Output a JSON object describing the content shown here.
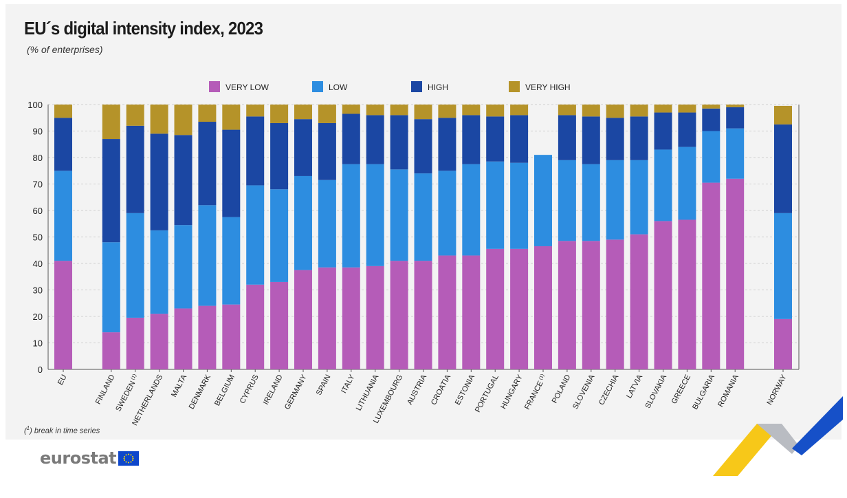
{
  "header": {
    "title": "EU´s digital intensity index, 2023",
    "subtitle": "(% of enterprises)"
  },
  "footer": {
    "footnote_marker": "1",
    "footnote_text": "break in time series",
    "logo_text": "eurostat"
  },
  "chart_data": {
    "type": "bar",
    "stacked": true,
    "ylim": [
      0,
      100
    ],
    "yticks": [
      0,
      10,
      20,
      30,
      40,
      50,
      60,
      70,
      80,
      90,
      100
    ],
    "grid": true,
    "legend_position": "top",
    "categories": [
      "EU",
      "FINLAND",
      "SWEDEN",
      "NETHERLANDS",
      "MALTA",
      "DENMARK",
      "BELGIUM",
      "CYPRUS",
      "IRELAND",
      "GERMANY",
      "SPAIN",
      "ITALY",
      "LITHUANIA",
      "LUXEMBOURG",
      "AUSTRIA",
      "CROATIA",
      "ESTONIA",
      "PORTUGAL",
      "HUNGARY",
      "FRANCE",
      "POLAND",
      "SLOVENIA",
      "CZECHIA",
      "LATVIA",
      "SLOVAKIA",
      "GREECE",
      "BULGARIA",
      "ROMANIA",
      "NORWAY"
    ],
    "category_footnotes": {
      "SWEDEN": "(1)",
      "FRANCE": "(1)"
    },
    "series": [
      {
        "name": "VERY LOW",
        "color": "#b55cb8",
        "values": [
          41,
          14,
          19.5,
          21,
          23,
          24,
          24.5,
          32,
          33,
          37.5,
          38.5,
          38.5,
          39,
          41,
          41,
          43,
          43,
          45.5,
          45.5,
          46.5,
          48.5,
          48.5,
          49,
          51,
          56,
          56.5,
          70.5,
          72,
          19
        ]
      },
      {
        "name": "LOW",
        "color": "#2d8de0",
        "values": [
          34,
          34,
          39.5,
          31.5,
          31.5,
          38,
          33,
          37.5,
          35,
          35.5,
          33,
          39,
          38.5,
          34.5,
          33,
          32,
          34.5,
          33,
          32.5,
          34.5,
          30.5,
          29,
          30,
          28,
          27,
          27.5,
          19.5,
          19,
          40
        ]
      },
      {
        "name": "HIGH",
        "color": "#1b47a3",
        "values": [
          20,
          39,
          33,
          36.5,
          34,
          31.5,
          33,
          26,
          25,
          21.5,
          21.5,
          19,
          18.5,
          20.5,
          20.5,
          20,
          18.5,
          17,
          18,
          0,
          17,
          18,
          16,
          16.5,
          14,
          13,
          8.5,
          8,
          33.5
        ]
      },
      {
        "name": "VERY HIGH",
        "color": "#b59329",
        "values": [
          5,
          13,
          8,
          11,
          11.5,
          6.5,
          9.5,
          4.5,
          7,
          5.5,
          7,
          3.5,
          4,
          4,
          5.5,
          5,
          4,
          4.5,
          4,
          0,
          4,
          4.5,
          5,
          4.5,
          3,
          3,
          1.5,
          1,
          7
        ]
      }
    ]
  }
}
